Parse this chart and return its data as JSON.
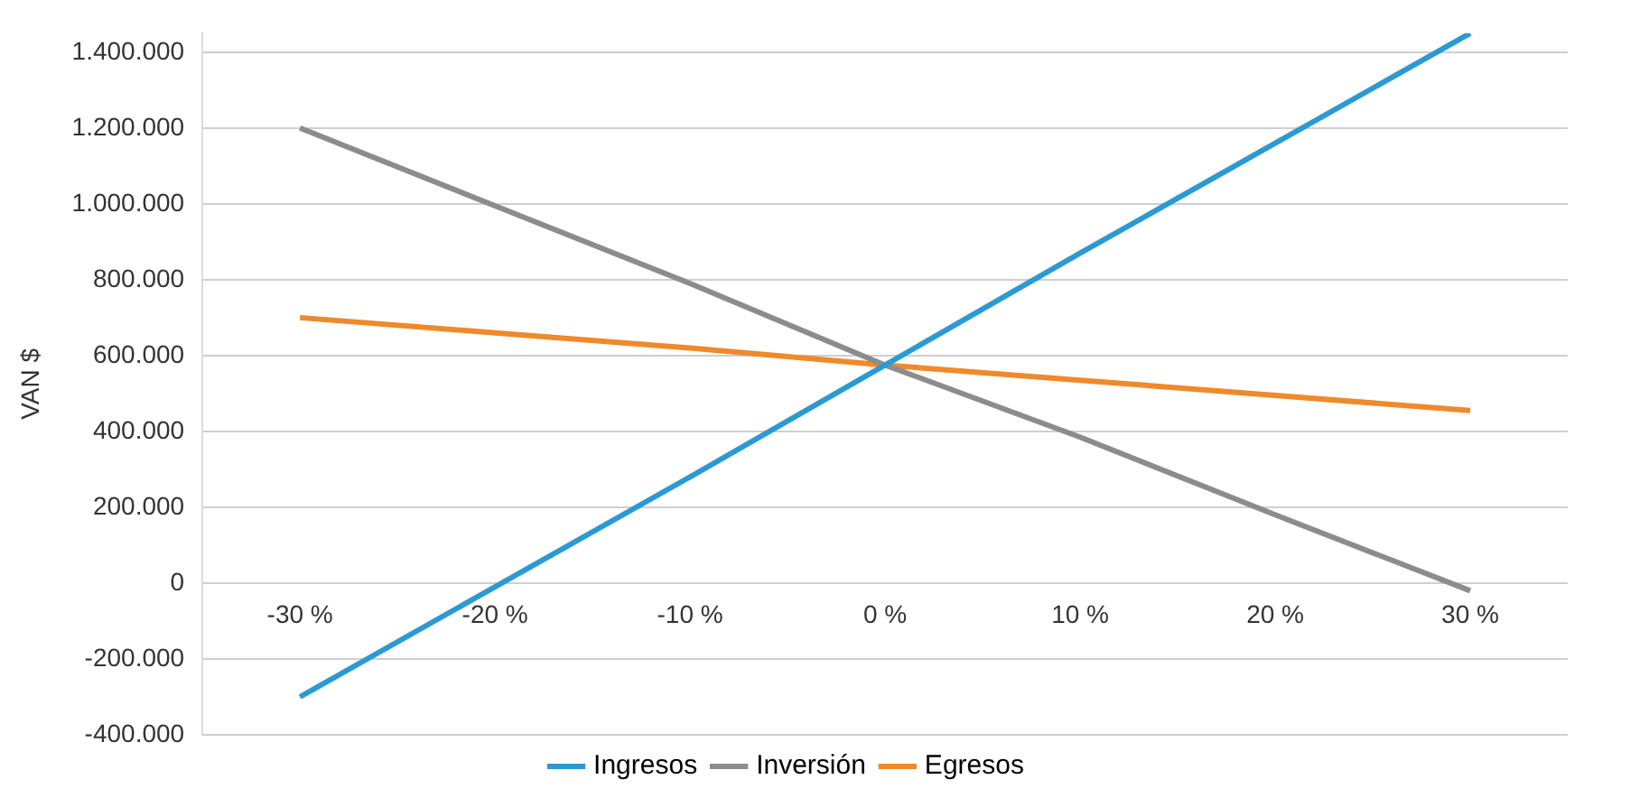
{
  "chart_data": {
    "type": "line",
    "ylabel": "VAN $",
    "categories": [
      "-30 %",
      "-20 %",
      "-10 %",
      "0 %",
      "10 %",
      "20 %",
      "30 %"
    ],
    "series": [
      {
        "name": "Ingresos",
        "color": "#2b9ad3",
        "values": [
          -300000,
          -10000,
          280000,
          575000,
          870000,
          1160000,
          1450000
        ]
      },
      {
        "name": "Inversión",
        "color": "#8c8c8c",
        "values": [
          1200000,
          995000,
          790000,
          575000,
          385000,
          180000,
          -20000
        ]
      },
      {
        "name": "Egresos",
        "color": "#ee8a2c",
        "values": [
          700000,
          660000,
          620000,
          575000,
          535000,
          495000,
          455000
        ]
      }
    ],
    "ylim": [
      -400000,
      1450000
    ],
    "yticks": [
      {
        "value": -400000,
        "label": "-400.000"
      },
      {
        "value": -200000,
        "label": "-200.000"
      },
      0,
      {
        "value": 200000,
        "label": "200.000"
      },
      {
        "value": 400000,
        "label": "400.000"
      },
      {
        "value": 600000,
        "label": "600.000"
      },
      {
        "value": 800000,
        "label": "800.000"
      },
      {
        "value": 1000000,
        "label": "1.000.000"
      },
      {
        "value": 1200000,
        "label": "1.200.000"
      },
      {
        "value": 1400000,
        "label": "1.400.000"
      }
    ],
    "grid": "y",
    "legend": "bottom",
    "marker": "none",
    "line_style": "solid"
  }
}
